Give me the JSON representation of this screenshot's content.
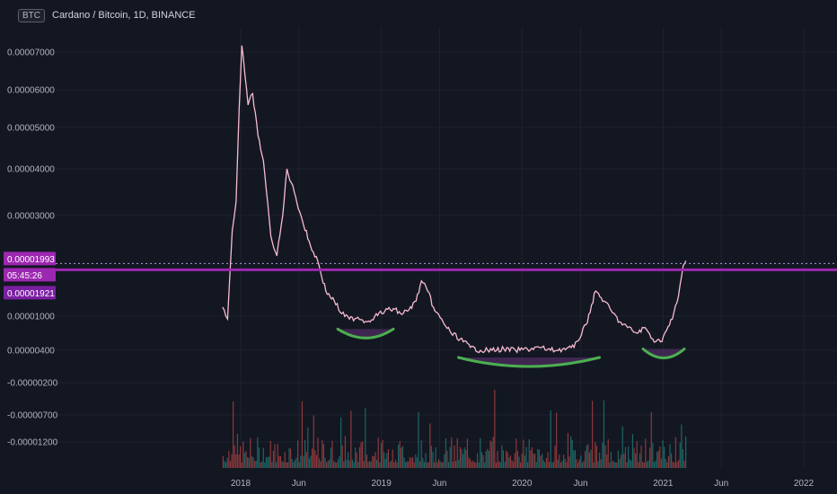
{
  "header": {
    "badge": "BTC",
    "title": "Cardano / Bitcoin, 1D, BINANCE"
  },
  "colors": {
    "background": "#131722",
    "price_line": "#f8bbd0",
    "horizontal_line": "#9c27b0",
    "arc": "#4caf50",
    "arc_fill": "#4a2a5e",
    "volume_up": "#26a69a",
    "volume_down": "#ef5350",
    "grid": "#1e222d"
  },
  "chart_data": {
    "type": "line",
    "y_ticks": [
      "0.00007000",
      "0.00006000",
      "0.00005000",
      "0.00004000",
      "0.00003000",
      "0.00001000",
      "0.00000400",
      "-0.00000200",
      "-0.00000700",
      "-0.00001200"
    ],
    "y_tick_values": [
      7e-05,
      6e-05,
      5e-05,
      4e-05,
      3e-05,
      1e-05,
      4e-06,
      -2e-06,
      -7e-06,
      -1.2e-05
    ],
    "x_ticks": [
      "2018",
      "Jun",
      "2019",
      "Jun",
      "2020",
      "Jun",
      "2021",
      "Jun",
      "2022"
    ],
    "x_tick_dates": [
      "2018-01-01",
      "2018-06-01",
      "2019-01-01",
      "2019-06-01",
      "2020-01-01",
      "2020-06-01",
      "2021-01-01",
      "2021-06-01",
      "2022-01-01"
    ],
    "series": [
      {
        "x": [
          "2017-11-15",
          "2017-11-28",
          "2017-12-10",
          "2017-12-20",
          "2017-12-28",
          "2018-01-04",
          "2018-01-12",
          "2018-01-20",
          "2018-02-01",
          "2018-02-15",
          "2018-03-01",
          "2018-03-20",
          "2018-04-05",
          "2018-04-20",
          "2018-05-01",
          "2018-05-20",
          "2018-06-10",
          "2018-07-01",
          "2018-07-20",
          "2018-08-10",
          "2018-09-01",
          "2018-09-20",
          "2018-10-10",
          "2018-11-01",
          "2018-11-25",
          "2018-12-15",
          "2019-01-10",
          "2019-02-01",
          "2019-02-20",
          "2019-03-10",
          "2019-04-01",
          "2019-04-15",
          "2019-05-01",
          "2019-05-20",
          "2019-06-10",
          "2019-07-01",
          "2019-07-25",
          "2019-08-20",
          "2019-09-15",
          "2019-10-15",
          "2019-11-15",
          "2019-12-15",
          "2020-01-15",
          "2020-02-15",
          "2020-03-15",
          "2020-04-15",
          "2020-05-15",
          "2020-06-15",
          "2020-07-10",
          "2020-08-01",
          "2020-08-20",
          "2020-09-10",
          "2020-10-01",
          "2020-10-25",
          "2020-11-15",
          "2020-12-05",
          "2020-12-25",
          "2021-01-10",
          "2021-01-25",
          "2021-02-10",
          "2021-02-22",
          "2021-03-01"
        ],
        "y": [
          1.18e-05,
          9.5e-06,
          2.7e-05,
          3.3e-05,
          5.5e-05,
          7.2e-05,
          6.4e-05,
          5.6e-05,
          5.9e-05,
          4.8e-05,
          4.2e-05,
          2.6e-05,
          2.2e-05,
          3e-05,
          4e-05,
          3.5e-05,
          2.9e-05,
          2.4e-05,
          2.1e-05,
          1.5e-05,
          1.3e-05,
          1.05e-05,
          9.5e-06,
          9.8e-06,
          9e-06,
          1e-05,
          1.1e-05,
          1.15e-05,
          1.05e-05,
          1.1e-05,
          1.3e-05,
          1.7e-05,
          1.5e-05,
          1.1e-05,
          9e-06,
          7e-06,
          6e-06,
          4.5e-06,
          4e-06,
          4e-06,
          4.2e-06,
          4e-06,
          4.2e-06,
          4.5e-06,
          4e-06,
          4.2e-06,
          4.5e-06,
          8.5e-06,
          1.5e-05,
          1.3e-05,
          1.1e-05,
          9e-06,
          8e-06,
          7e-06,
          8e-06,
          6e-06,
          5.5e-06,
          7.5e-06,
          9.5e-06,
          1.4e-05,
          2e-05,
          2.1e-05
        ]
      }
    ],
    "horizontal_line": {
      "value": 1.993e-05
    },
    "price_tags": [
      "0.00001993",
      "05:45:26",
      "0.00001921"
    ],
    "arcs": [
      {
        "from": "2018-09-10",
        "to": "2019-02-01"
      },
      {
        "from": "2019-07-20",
        "to": "2020-07-20"
      },
      {
        "from": "2020-11-10",
        "to": "2021-02-25"
      }
    ],
    "legend": "none",
    "grid": true
  }
}
